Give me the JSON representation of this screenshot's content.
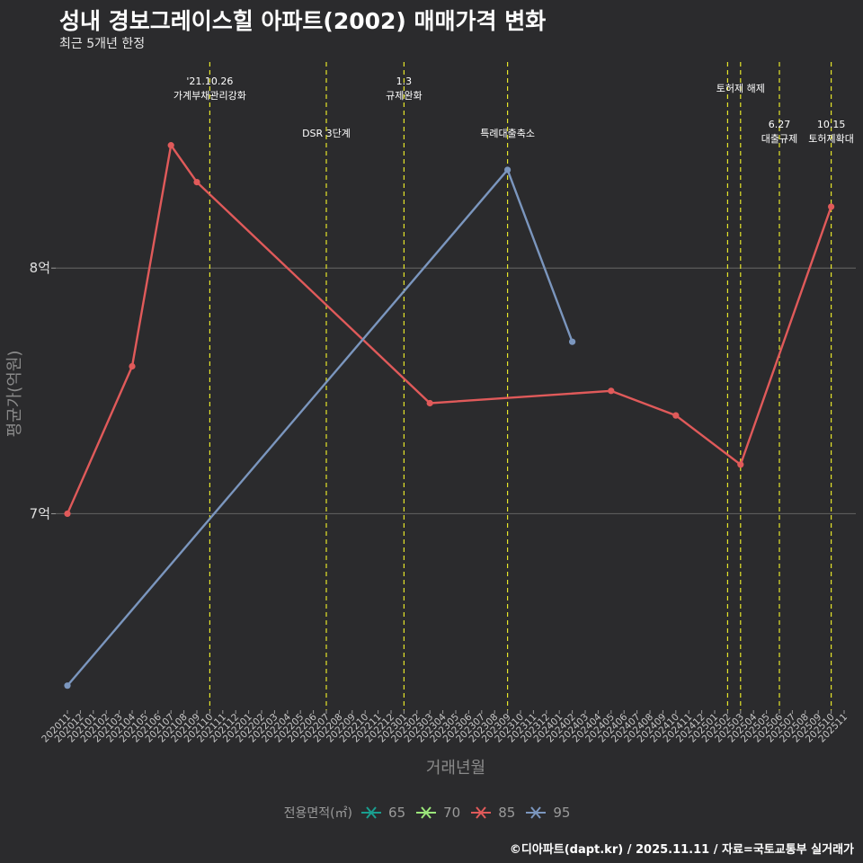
{
  "title": "성내 경보그레이스힐 아파트(2002) 매매가격 변화",
  "subtitle": "최근 5개년 한정",
  "caption": "©디아파트(dapt.kr) / 2025.11.11 / 자료=국토교통부 실거래가",
  "legend": {
    "title": "전용면적(㎡)",
    "items": [
      {
        "label": "65",
        "color": "#1a9e8f"
      },
      {
        "label": "70",
        "color": "#9be67a"
      },
      {
        "label": "85",
        "color": "#e05a5a"
      },
      {
        "label": "95",
        "color": "#7b96be"
      }
    ]
  },
  "chart_data": {
    "type": "line",
    "xlabel": "거래년월",
    "ylabel": "평균가(억원)",
    "ylim": [
      6.2,
      8.85
    ],
    "yticks": [
      {
        "value": 7,
        "label": "7억"
      },
      {
        "value": 8,
        "label": "8억"
      }
    ],
    "categories": [
      "202011",
      "202012",
      "202101",
      "202102",
      "202103",
      "202104",
      "202105",
      "202106",
      "202107",
      "202108",
      "202109",
      "202110",
      "202111",
      "202112",
      "202201",
      "202202",
      "202203",
      "202204",
      "202205",
      "202206",
      "202207",
      "202208",
      "202209",
      "202210",
      "202211",
      "202212",
      "202301",
      "202302",
      "202303",
      "202304",
      "202305",
      "202306",
      "202307",
      "202308",
      "202309",
      "202310",
      "202311",
      "202312",
      "202401",
      "202402",
      "202403",
      "202404",
      "202405",
      "202406",
      "202407",
      "202408",
      "202409",
      "202410",
      "202411",
      "202412",
      "202501",
      "202502",
      "202503",
      "202504",
      "202505",
      "202506",
      "202507",
      "202508",
      "202509",
      "202510",
      "202511"
    ],
    "series": [
      {
        "name": "85",
        "color": "#e05a5a",
        "points": [
          {
            "x": "202011",
            "y": 7.0
          },
          {
            "x": "202104",
            "y": 7.6
          },
          {
            "x": "202107",
            "y": 8.5
          },
          {
            "x": "202109",
            "y": 8.35
          },
          {
            "x": "202303",
            "y": 7.45
          },
          {
            "x": "202405",
            "y": 7.5
          },
          {
            "x": "202410",
            "y": 7.4
          },
          {
            "x": "202503",
            "y": 7.2
          },
          {
            "x": "202510",
            "y": 8.25
          }
        ]
      },
      {
        "name": "95",
        "color": "#7b96be",
        "points": [
          {
            "x": "202011",
            "y": 6.3
          },
          {
            "x": "202309",
            "y": 8.4
          },
          {
            "x": "202402",
            "y": 7.7
          }
        ]
      }
    ],
    "events": [
      {
        "x": "202110",
        "row": 0,
        "lines": [
          "'21.10.26",
          "가계부채관리강화"
        ]
      },
      {
        "x": "202207",
        "row": 1,
        "lines": [
          "DSR 3단계"
        ]
      },
      {
        "x": "202301",
        "row": 0,
        "lines": [
          "1.3",
          "규제완화"
        ]
      },
      {
        "x": "202309",
        "row": 1,
        "lines": [
          "특례대출축소"
        ]
      },
      {
        "x": "202502",
        "row": 0,
        "lines": [
          ""
        ]
      },
      {
        "x": "202503",
        "row": 0,
        "lines": [
          "토허제 해제"
        ]
      },
      {
        "x": "202506",
        "row": 1,
        "lines": [
          "6.27",
          "대출규제"
        ]
      },
      {
        "x": "202510",
        "row": 1,
        "lines": [
          "10.15",
          "토허제확대"
        ]
      }
    ]
  }
}
